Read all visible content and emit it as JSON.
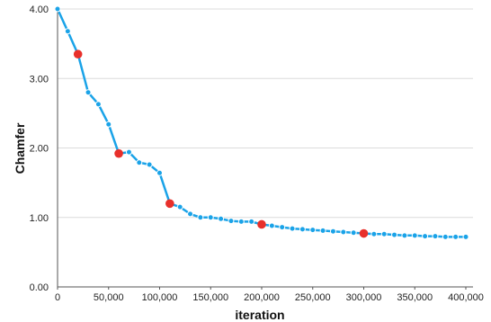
{
  "chart_data": {
    "type": "line",
    "title": "",
    "xlabel": "iteration",
    "ylabel": "Chamfer",
    "xlim": [
      0,
      400000
    ],
    "ylim": [
      0,
      4
    ],
    "x_ticks": [
      0,
      50000,
      100000,
      150000,
      200000,
      250000,
      300000,
      350000,
      400000
    ],
    "x_tick_labels": [
      "0",
      "50,000",
      "100,000",
      "150,000",
      "200,000",
      "250,000",
      "300,000",
      "350,000",
      "400,000"
    ],
    "y_ticks": [
      0,
      1,
      2,
      3,
      4
    ],
    "y_tick_labels": [
      "0.00",
      "1.00",
      "2.00",
      "3.00",
      "4.00"
    ],
    "grid": {
      "horizontal": true,
      "vertical": false
    },
    "legend": "none",
    "series": [
      {
        "color": "#1aa3e8",
        "marker_color": "#1aa3e8",
        "x": [
          0,
          10000,
          20000,
          30000,
          40000,
          50000,
          60000,
          70000,
          80000,
          90000,
          100000,
          110000,
          120000,
          130000,
          140000,
          150000,
          160000,
          170000,
          180000,
          190000,
          200000,
          210000,
          220000,
          230000,
          240000,
          250000,
          260000,
          270000,
          280000,
          290000,
          300000,
          310000,
          320000,
          330000,
          340000,
          350000,
          360000,
          370000,
          380000,
          390000,
          400000
        ],
        "y": [
          4.0,
          3.68,
          3.35,
          2.8,
          2.63,
          2.34,
          1.92,
          1.94,
          1.79,
          1.76,
          1.64,
          1.2,
          1.15,
          1.05,
          1.0,
          1.0,
          0.98,
          0.95,
          0.94,
          0.94,
          0.9,
          0.88,
          0.86,
          0.84,
          0.83,
          0.82,
          0.81,
          0.8,
          0.79,
          0.78,
          0.77,
          0.76,
          0.76,
          0.75,
          0.74,
          0.74,
          0.73,
          0.73,
          0.72,
          0.72,
          0.72
        ]
      }
    ],
    "highlighted_points": {
      "color": "#e8302b",
      "x": [
        20000,
        60000,
        110000,
        200000,
        300000
      ],
      "y": [
        3.35,
        1.92,
        1.2,
        0.9,
        0.77
      ]
    }
  }
}
